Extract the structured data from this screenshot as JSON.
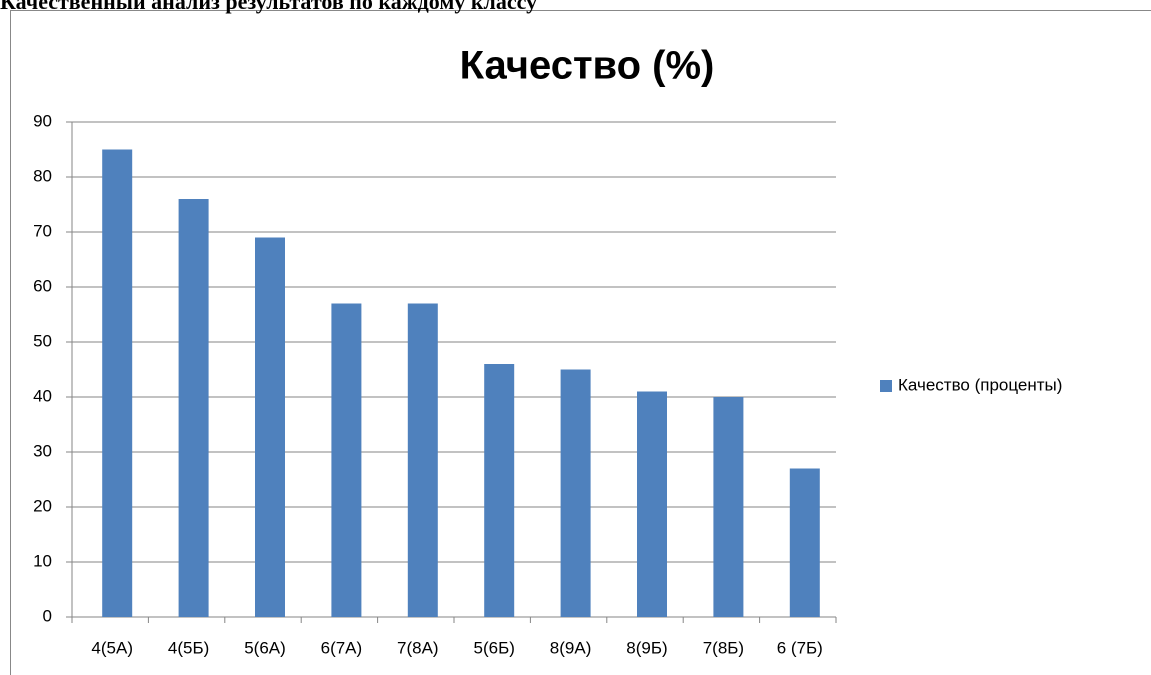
{
  "heading": "Качественный анализ результатов по каждому классу",
  "chart_data": {
    "type": "bar",
    "title": "Качество (%)",
    "categories": [
      "4(5А)",
      "4(5Б)",
      "5(6А)",
      "6(7А)",
      "7(8А)",
      "5(6Б)",
      "8(9А)",
      "8(9Б)",
      "7(8Б)",
      "6 (7Б)"
    ],
    "series": [
      {
        "name": "Качество (проценты)",
        "color": "#4f81bd",
        "values": [
          85,
          76,
          69,
          57,
          57,
          46,
          45,
          41,
          40,
          27
        ]
      }
    ],
    "ylim": [
      0,
      90
    ],
    "yticks": [
      0,
      10,
      20,
      30,
      40,
      50,
      60,
      70,
      80,
      90
    ],
    "grid": true,
    "legend": "right"
  }
}
